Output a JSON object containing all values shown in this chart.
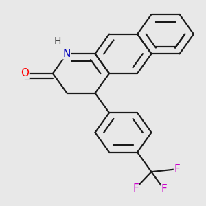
{
  "bg_color": "#e8e8e8",
  "bond_color": "#1a1a1a",
  "bond_width": 1.6,
  "atom_colors": {
    "O": "#ff0000",
    "N": "#0000bb",
    "F": "#cc00cc",
    "H": "#444444"
  },
  "font_size": 10,
  "fig_width": 3.0,
  "fig_height": 3.0,
  "dpi": 100
}
